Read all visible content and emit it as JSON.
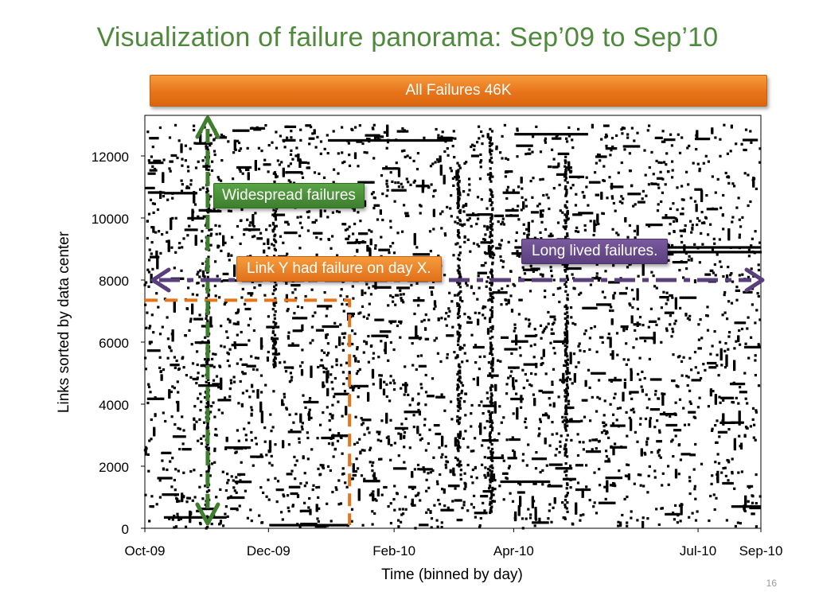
{
  "slide": {
    "title": "Visualization of failure panorama: Sep’09 to Sep’10",
    "banner": "All Failures 46K",
    "page_number": "16"
  },
  "callouts": {
    "widespread": "Widespread failures",
    "link_day": "Link Y had failure on day X.",
    "long_lived": "Long lived failures."
  },
  "colors": {
    "title": "#4e8a3c",
    "orange": "#e8741a",
    "green": "#3e7f2e",
    "purple": "#5a3f7d",
    "points": "#000000"
  },
  "chart_data": {
    "type": "scatter",
    "title": "",
    "xlabel": "Time (binned by day)",
    "ylabel": "Links sorted by data center",
    "x_ticks": [
      {
        "label": "Oct-09",
        "day": 0
      },
      {
        "label": "Dec-09",
        "day": 61
      },
      {
        "label": "Feb-10",
        "day": 123
      },
      {
        "label": "Apr-10",
        "day": 182
      },
      {
        "label": "Jul-10",
        "day": 273
      },
      {
        "label": "Sep-10",
        "day": 304
      }
    ],
    "xlim": [
      0,
      304
    ],
    "ylim": [
      0,
      13000
    ],
    "y_ticks": [
      0,
      2000,
      4000,
      6000,
      8000,
      10000,
      12000
    ],
    "total_failures": "46K",
    "example_failure": {
      "day": 101,
      "link": 7350
    },
    "widespread_failure_day": 31,
    "long_lived_failure_link": 8000,
    "dense_rows": [
      {
        "link": 12500,
        "from": 91,
        "to": 152
      },
      {
        "link": 12700,
        "from": 183,
        "to": 219
      },
      {
        "link": 10800,
        "from": 10,
        "to": 26
      },
      {
        "link": 9050,
        "from": 183,
        "to": 304
      },
      {
        "link": 8900,
        "from": 248,
        "to": 304
      },
      {
        "link": 6500,
        "from": 88,
        "to": 96
      },
      {
        "link": 4600,
        "from": 27,
        "to": 36
      },
      {
        "link": 2600,
        "from": 40,
        "to": 52
      },
      {
        "link": 1500,
        "from": 176,
        "to": 200
      },
      {
        "link": 700,
        "from": 290,
        "to": 304
      },
      {
        "link": 350,
        "from": 10,
        "to": 40
      },
      {
        "link": 100,
        "from": 62,
        "to": 100
      }
    ],
    "dense_columns": [
      {
        "day": 31,
        "from": 0,
        "to": 12500
      },
      {
        "day": 171,
        "from": 500,
        "to": 12600
      },
      {
        "day": 208,
        "from": 300,
        "to": 12000
      },
      {
        "day": 155,
        "from": 2000,
        "to": 11800
      },
      {
        "day": 64,
        "from": 5200,
        "to": 11500
      }
    ]
  }
}
